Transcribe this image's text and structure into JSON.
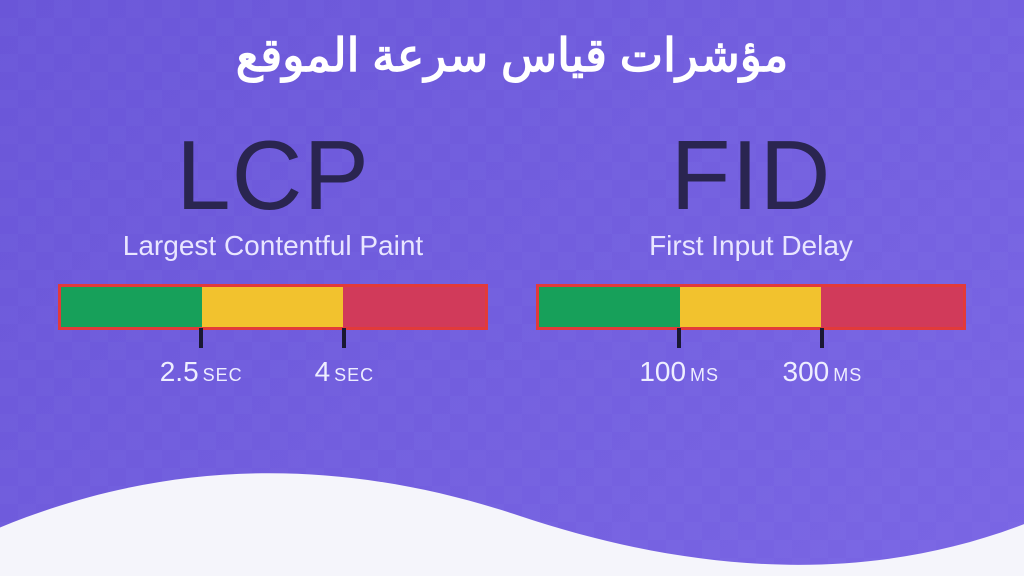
{
  "title": "مؤشرات قياس سرعة الموقع",
  "colors": {
    "bg_start": "#6a56d8",
    "bg_end": "#7a66e4",
    "checker": "rgba(255,255,255,0.05)",
    "wave": "#f5f5fb",
    "title": "#ffffff",
    "abbrev": "#2a2550",
    "full_name": "#e9e6ff",
    "bar_border": "#e23a3a",
    "tick": "#1a1833",
    "threshold_text": "#eeeeff",
    "seg_good": "#17a05a",
    "seg_mid": "#f2c22e",
    "seg_bad": "#d13a5a"
  },
  "metrics": [
    {
      "abbrev": "LCP",
      "full": "Largest Contentful Paint",
      "segments": [
        {
          "color_key": "seg_good",
          "width_pct": 33.3
        },
        {
          "color_key": "seg_mid",
          "width_pct": 33.3
        },
        {
          "color_key": "seg_bad",
          "width_pct": 33.4
        }
      ],
      "thresholds": [
        {
          "num": "2.5",
          "unit": "SEC",
          "pos_pct": 33.3
        },
        {
          "num": "4",
          "unit": "SEC",
          "pos_pct": 66.6
        }
      ]
    },
    {
      "abbrev": "FID",
      "full": "First Input Delay",
      "segments": [
        {
          "color_key": "seg_good",
          "width_pct": 33.3
        },
        {
          "color_key": "seg_mid",
          "width_pct": 33.3
        },
        {
          "color_key": "seg_bad",
          "width_pct": 33.4
        }
      ],
      "thresholds": [
        {
          "num": "100",
          "unit": "MS",
          "pos_pct": 33.3
        },
        {
          "num": "300",
          "unit": "MS",
          "pos_pct": 66.6
        }
      ]
    }
  ]
}
